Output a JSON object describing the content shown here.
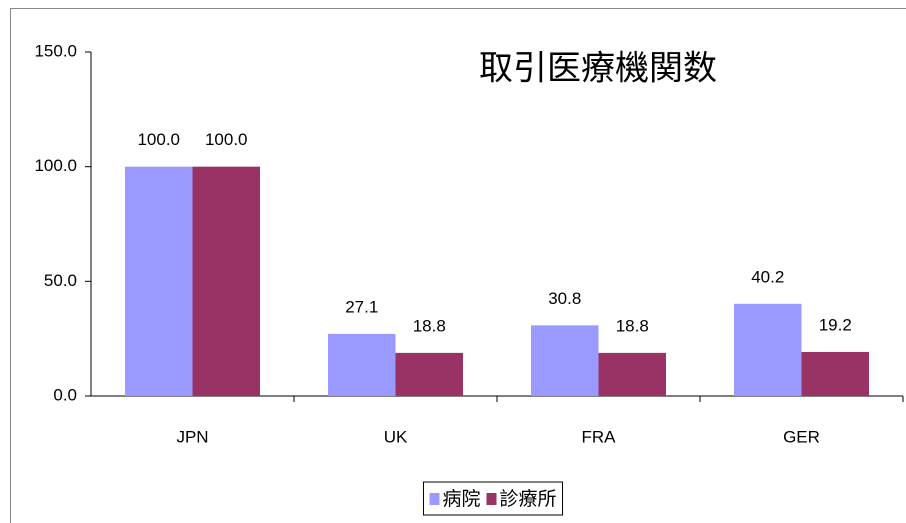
{
  "chart_data": {
    "type": "bar",
    "title": "取引医療機関数",
    "categories": [
      "JPN",
      "UK",
      "FRA",
      "GER"
    ],
    "series": [
      {
        "name": "病院",
        "color": "#9999ff",
        "values": [
          100.0,
          27.1,
          30.8,
          40.2
        ],
        "value_labels": [
          "100.0",
          "27.1",
          "30.8",
          "40.2"
        ]
      },
      {
        "name": "診療所",
        "color": "#993366",
        "values": [
          100.0,
          18.8,
          18.8,
          19.2
        ],
        "value_labels": [
          "100.0",
          "18.8",
          "18.8",
          "19.2"
        ]
      }
    ],
    "ylim": [
      0,
      150
    ],
    "yticks": [
      {
        "value": 0,
        "label": "0.0"
      },
      {
        "value": 50,
        "label": "50.0"
      },
      {
        "value": 100,
        "label": "100.0"
      },
      {
        "value": 150,
        "label": "150.0"
      }
    ],
    "grid": false,
    "legend": "bottom"
  }
}
